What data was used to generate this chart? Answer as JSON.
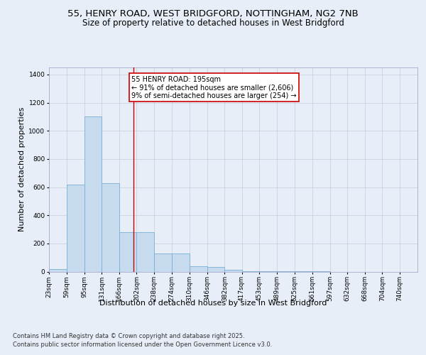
{
  "title_line1": "55, HENRY ROAD, WEST BRIDGFORD, NOTTINGHAM, NG2 7NB",
  "title_line2": "Size of property relative to detached houses in West Bridgford",
  "xlabel": "Distribution of detached houses by size in West Bridgford",
  "ylabel": "Number of detached properties",
  "footer_line1": "Contains HM Land Registry data © Crown copyright and database right 2025.",
  "footer_line2": "Contains public sector information licensed under the Open Government Licence v3.0.",
  "bin_labels": [
    "23sqm",
    "59sqm",
    "95sqm",
    "131sqm",
    "166sqm",
    "202sqm",
    "238sqm",
    "274sqm",
    "310sqm",
    "346sqm",
    "382sqm",
    "417sqm",
    "453sqm",
    "489sqm",
    "525sqm",
    "561sqm",
    "597sqm",
    "632sqm",
    "668sqm",
    "704sqm",
    "740sqm"
  ],
  "bar_values": [
    20,
    620,
    1100,
    630,
    280,
    280,
    130,
    130,
    40,
    35,
    15,
    5,
    3,
    2,
    1,
    1,
    0,
    0,
    0,
    0,
    0
  ],
  "bar_color": "#c6dcee",
  "bar_edgecolor": "#7bafd4",
  "bg_color": "#e8eef8",
  "grid_color": "#c8cce0",
  "vline_x": 195,
  "vline_color": "#cc0000",
  "annotation_text": "55 HENRY ROAD: 195sqm\n← 91% of detached houses are smaller (2,606)\n9% of semi-detached houses are larger (254) →",
  "annotation_box_color": "#cc0000",
  "annotation_text_color": "#000000",
  "ylim": [
    0,
    1450
  ],
  "yticks": [
    0,
    200,
    400,
    600,
    800,
    1000,
    1200,
    1400
  ],
  "bin_edges": [
    23,
    59,
    95,
    131,
    166,
    202,
    238,
    274,
    310,
    346,
    382,
    417,
    453,
    489,
    525,
    561,
    597,
    632,
    668,
    704,
    740,
    776
  ],
  "title_fontsize": 9.5,
  "subtitle_fontsize": 8.5,
  "axis_label_fontsize": 8,
  "tick_fontsize": 6.5,
  "footer_fontsize": 6,
  "annotation_fontsize": 7
}
